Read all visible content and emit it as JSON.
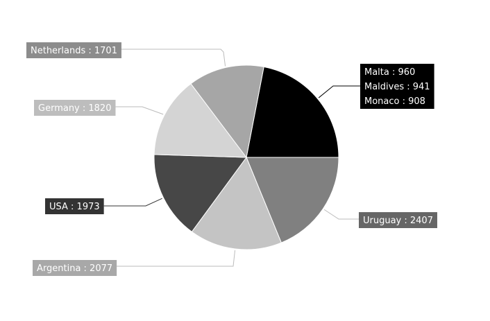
{
  "chart_data": {
    "type": "pie",
    "title": "",
    "slices": [
      {
        "label": "Malta",
        "value": 960,
        "color": "#000000",
        "label_color": "#000000",
        "text_color": "#ffffff",
        "grouped_in": "small"
      },
      {
        "label": "Maldives",
        "value": 941,
        "color": "#000000",
        "label_color": "#000000",
        "text_color": "#ffffff",
        "grouped_in": "small"
      },
      {
        "label": "Monaco",
        "value": 908,
        "color": "#000000",
        "label_color": "#000000",
        "text_color": "#ffffff",
        "grouped_in": "small"
      },
      {
        "label": "Uruguay",
        "value": 2407,
        "color": "#808080",
        "label_color": "#666666",
        "text_color": "#ffffff"
      },
      {
        "label": "Argentina",
        "value": 2077,
        "color": "#c4c4c4",
        "label_color": "#a8a8a8",
        "text_color": "#ffffff"
      },
      {
        "label": "USA",
        "value": 1973,
        "color": "#474747",
        "label_color": "#333333",
        "text_color": "#ffffff"
      },
      {
        "label": "Germany",
        "value": 1820,
        "color": "#d4d4d4",
        "label_color": "#bdbdbd",
        "text_color": "#ffffff"
      },
      {
        "label": "Netherlands",
        "value": 1701,
        "color": "#a6a6a6",
        "label_color": "#8c8c8c",
        "text_color": "#ffffff"
      }
    ],
    "legend": "none",
    "data_labels": [
      "Malta : 960",
      "Maldives : 941",
      "Monaco : 908",
      "Uruguay : 2407",
      "Argentina : 2077",
      "USA : 1973",
      "Germany : 1820",
      "Netherlands : 1701"
    ]
  }
}
